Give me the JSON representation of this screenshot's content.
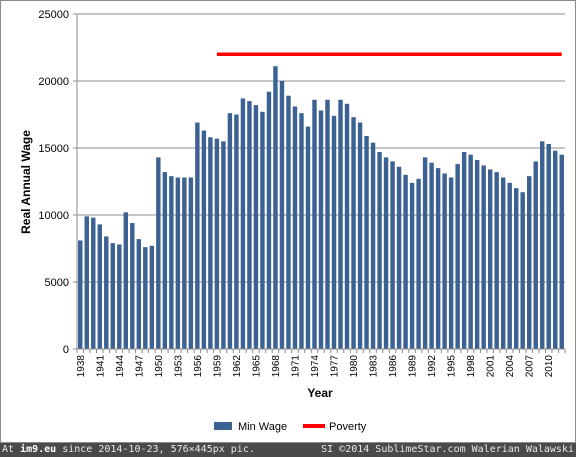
{
  "chart_data": {
    "type": "bar",
    "ylabel": "Real Annual Wage",
    "xlabel": "Year",
    "ylim": [
      0,
      25000
    ],
    "y_ticks": [
      0,
      5000,
      10000,
      15000,
      20000,
      25000
    ],
    "y_tick_labels": [
      "0",
      "5000",
      "10000",
      "15000",
      "20000",
      "25000"
    ],
    "grid": "horizontal",
    "legend_position": "bottom",
    "years": [
      1938,
      1939,
      1940,
      1941,
      1942,
      1943,
      1944,
      1945,
      1946,
      1947,
      1948,
      1949,
      1950,
      1951,
      1952,
      1953,
      1954,
      1955,
      1956,
      1957,
      1958,
      1959,
      1960,
      1961,
      1962,
      1963,
      1964,
      1965,
      1966,
      1967,
      1968,
      1969,
      1970,
      1971,
      1972,
      1973,
      1974,
      1975,
      1976,
      1977,
      1978,
      1979,
      1980,
      1981,
      1982,
      1983,
      1984,
      1985,
      1986,
      1987,
      1988,
      1989,
      1990,
      1991,
      1992,
      1993,
      1994,
      1995,
      1996,
      1997,
      1998,
      1999,
      2000,
      2001,
      2002,
      2003,
      2004,
      2005,
      2006,
      2007,
      2008,
      2009,
      2010,
      2011,
      2012
    ],
    "x_tick_labels": [
      "1938",
      "1941",
      "1944",
      "1947",
      "1950",
      "1953",
      "1956",
      "1959",
      "1962",
      "1965",
      "1968",
      "1971",
      "1974",
      "1977",
      "1980",
      "1983",
      "1986",
      "1989",
      "1992",
      "1995",
      "1998",
      "2001",
      "2004",
      "2007",
      "2010"
    ],
    "series": [
      {
        "name": "Min Wage",
        "type": "bar",
        "color": "#3c6293",
        "values": [
          8100,
          9900,
          9800,
          9300,
          8400,
          7900,
          7800,
          10200,
          9400,
          8200,
          7600,
          7700,
          14300,
          13200,
          12900,
          12800,
          12800,
          12800,
          16900,
          16300,
          15800,
          15700,
          15500,
          17600,
          17500,
          18700,
          18500,
          18200,
          17700,
          19200,
          21100,
          20000,
          18900,
          18100,
          17600,
          16600,
          18600,
          17800,
          18600,
          17400,
          18600,
          18300,
          17300,
          16900,
          15900,
          15400,
          14700,
          14300,
          14000,
          13600,
          13000,
          12400,
          12700,
          14300,
          13900,
          13500,
          13100,
          12800,
          13800,
          14700,
          14500,
          14100,
          13700,
          13400,
          13200,
          12800,
          12400,
          12000,
          11700,
          12900,
          14000,
          15500,
          15300,
          14800,
          14500
        ]
      },
      {
        "name": "Poverty",
        "type": "line",
        "color": "#ff0000",
        "x_range": [
          1959,
          2012
        ],
        "value": 22000
      }
    ]
  },
  "footer": {
    "left_prefix": "At ",
    "left_site": "im9.eu",
    "left_suffix": " since 2014-10-23, 576×445px pic.",
    "right": "SI ©2014 SublimeStar.com Walerian Walawski"
  }
}
